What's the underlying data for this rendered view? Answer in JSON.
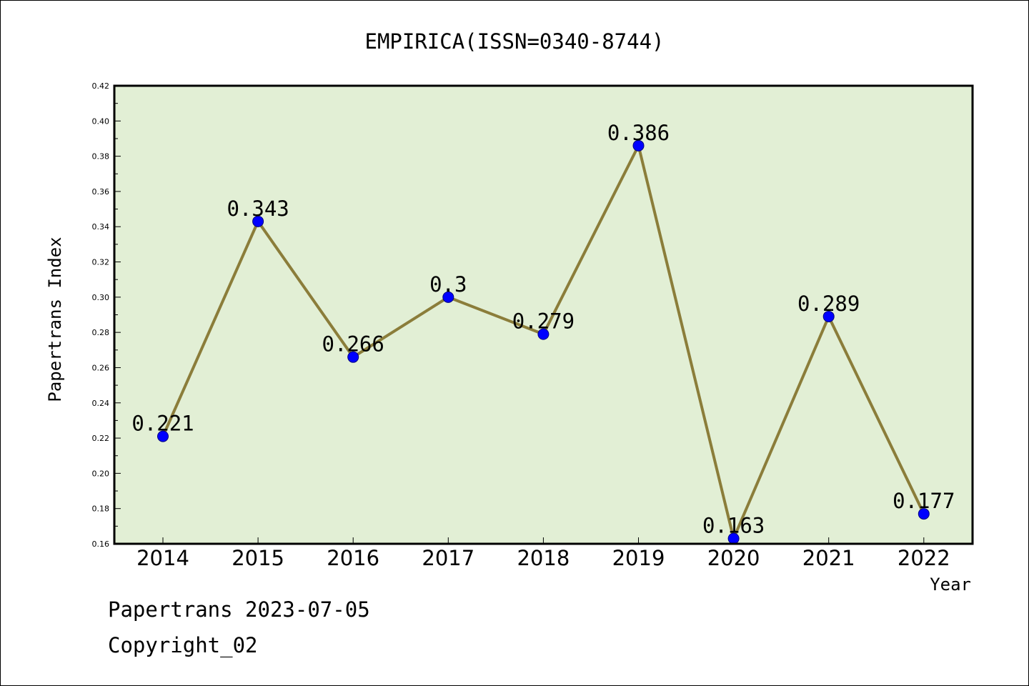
{
  "chart_data": {
    "type": "line",
    "title": "EMPIRICA(ISSN=0340-8744)",
    "xlabel": "Year",
    "ylabel": "Papertrans Index",
    "categories": [
      "2014",
      "2015",
      "2016",
      "2017",
      "2018",
      "2019",
      "2020",
      "2021",
      "2022"
    ],
    "series": [
      {
        "values": [
          0.221,
          0.343,
          0.266,
          0.3,
          0.279,
          0.386,
          0.163,
          0.289,
          0.177
        ]
      }
    ],
    "data_labels": [
      "0.221",
      "0.343",
      "0.266",
      "0.3",
      "0.279",
      "0.386",
      "0.163",
      "0.289",
      "0.177"
    ],
    "ylim": [
      0.16,
      0.42
    ],
    "yticks": [
      "0.16",
      "0.18",
      "0.20",
      "0.22",
      "0.24",
      "0.26",
      "0.28",
      "0.30",
      "0.32",
      "0.34",
      "0.36",
      "0.38",
      "0.40",
      "0.42"
    ],
    "grid": false,
    "colors": {
      "plot_background": "#e2efd5",
      "line": "#8b7d3a",
      "marker": "#0000ff",
      "marker_edge": "#000080"
    }
  },
  "footer": {
    "line1": "Papertrans 2023-07-05",
    "line2": "Copyright_02"
  }
}
